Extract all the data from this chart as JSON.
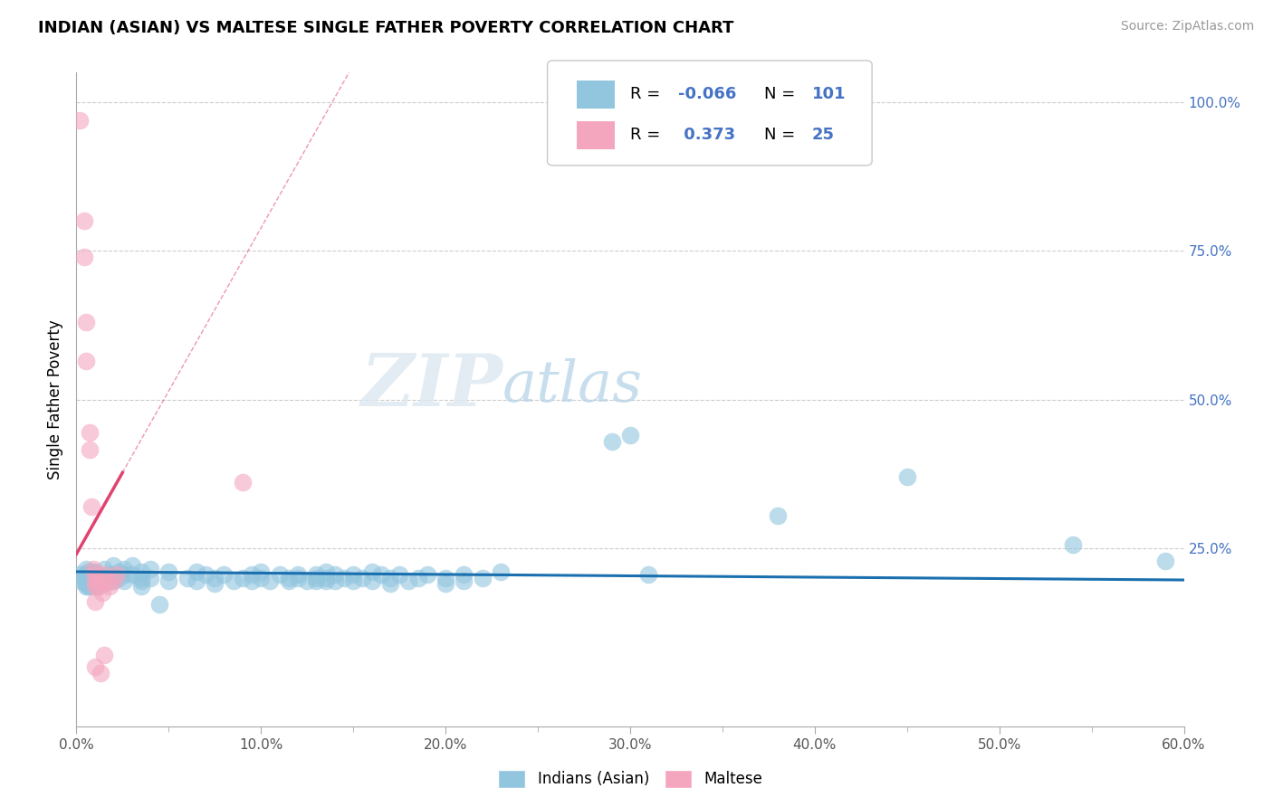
{
  "title": "INDIAN (ASIAN) VS MALTESE SINGLE FATHER POVERTY CORRELATION CHART",
  "source": "Source: ZipAtlas.com",
  "ylabel": "Single Father Poverty",
  "xlim": [
    0.0,
    0.6
  ],
  "ylim": [
    -0.05,
    1.05
  ],
  "xtick_labels": [
    "0.0%",
    "",
    "",
    "",
    "",
    "",
    "",
    "",
    "",
    "",
    "",
    "10.0%",
    "",
    "",
    "",
    "",
    "",
    "",
    "",
    "",
    "",
    "",
    "20.0%",
    "",
    "",
    "",
    "",
    "",
    "",
    "",
    "",
    "",
    "",
    "30.0%",
    "",
    "",
    "",
    "",
    "",
    "",
    "",
    "",
    "",
    "",
    "40.0%",
    "",
    "",
    "",
    "",
    "",
    "",
    "",
    "",
    "",
    "",
    "50.0%",
    "",
    "",
    "",
    "",
    "",
    "",
    "",
    "",
    "",
    "",
    "60.0%"
  ],
  "xtick_vals": [
    0.0,
    0.05,
    0.1,
    0.15,
    0.2,
    0.25,
    0.3,
    0.35,
    0.4,
    0.45,
    0.5,
    0.55,
    0.6
  ],
  "xtick_major_labels": [
    "0.0%",
    "10.0%",
    "20.0%",
    "30.0%",
    "40.0%",
    "50.0%",
    "60.0%"
  ],
  "xtick_major_vals": [
    0.0,
    0.1,
    0.2,
    0.3,
    0.4,
    0.5,
    0.6
  ],
  "ytick_labels": [
    "100.0%",
    "75.0%",
    "50.0%",
    "25.0%"
  ],
  "ytick_vals": [
    1.0,
    0.75,
    0.5,
    0.25
  ],
  "watermark_zip": "ZIP",
  "watermark_atlas": "atlas",
  "blue_color": "#92c5de",
  "pink_color": "#f4a6be",
  "blue_line_color": "#1a6faf",
  "pink_line_color": "#e0436e",
  "blue_scatter": [
    [
      0.002,
      0.205
    ],
    [
      0.003,
      0.195
    ],
    [
      0.004,
      0.2
    ],
    [
      0.005,
      0.215
    ],
    [
      0.005,
      0.205
    ],
    [
      0.005,
      0.195
    ],
    [
      0.005,
      0.19
    ],
    [
      0.005,
      0.185
    ],
    [
      0.006,
      0.21
    ],
    [
      0.006,
      0.2
    ],
    [
      0.006,
      0.195
    ],
    [
      0.006,
      0.185
    ],
    [
      0.007,
      0.205
    ],
    [
      0.007,
      0.195
    ],
    [
      0.007,
      0.185
    ],
    [
      0.008,
      0.21
    ],
    [
      0.008,
      0.2
    ],
    [
      0.008,
      0.195
    ],
    [
      0.009,
      0.205
    ],
    [
      0.009,
      0.195
    ],
    [
      0.01,
      0.21
    ],
    [
      0.01,
      0.2
    ],
    [
      0.01,
      0.195
    ],
    [
      0.01,
      0.185
    ],
    [
      0.012,
      0.205
    ],
    [
      0.012,
      0.195
    ],
    [
      0.012,
      0.185
    ],
    [
      0.015,
      0.215
    ],
    [
      0.015,
      0.2
    ],
    [
      0.015,
      0.19
    ],
    [
      0.018,
      0.205
    ],
    [
      0.018,
      0.195
    ],
    [
      0.02,
      0.22
    ],
    [
      0.02,
      0.205
    ],
    [
      0.02,
      0.195
    ],
    [
      0.023,
      0.21
    ],
    [
      0.023,
      0.2
    ],
    [
      0.026,
      0.215
    ],
    [
      0.026,
      0.205
    ],
    [
      0.026,
      0.195
    ],
    [
      0.03,
      0.22
    ],
    [
      0.03,
      0.205
    ],
    [
      0.035,
      0.21
    ],
    [
      0.035,
      0.2
    ],
    [
      0.035,
      0.195
    ],
    [
      0.035,
      0.185
    ],
    [
      0.04,
      0.215
    ],
    [
      0.04,
      0.2
    ],
    [
      0.045,
      0.155
    ],
    [
      0.05,
      0.21
    ],
    [
      0.05,
      0.195
    ],
    [
      0.06,
      0.2
    ],
    [
      0.065,
      0.21
    ],
    [
      0.065,
      0.195
    ],
    [
      0.07,
      0.205
    ],
    [
      0.075,
      0.2
    ],
    [
      0.075,
      0.19
    ],
    [
      0.08,
      0.205
    ],
    [
      0.085,
      0.195
    ],
    [
      0.09,
      0.2
    ],
    [
      0.095,
      0.205
    ],
    [
      0.095,
      0.195
    ],
    [
      0.1,
      0.21
    ],
    [
      0.1,
      0.2
    ],
    [
      0.105,
      0.195
    ],
    [
      0.11,
      0.205
    ],
    [
      0.115,
      0.2
    ],
    [
      0.115,
      0.195
    ],
    [
      0.12,
      0.205
    ],
    [
      0.12,
      0.2
    ],
    [
      0.125,
      0.195
    ],
    [
      0.13,
      0.205
    ],
    [
      0.13,
      0.2
    ],
    [
      0.13,
      0.195
    ],
    [
      0.135,
      0.21
    ],
    [
      0.135,
      0.2
    ],
    [
      0.135,
      0.195
    ],
    [
      0.14,
      0.205
    ],
    [
      0.14,
      0.195
    ],
    [
      0.145,
      0.2
    ],
    [
      0.15,
      0.205
    ],
    [
      0.15,
      0.195
    ],
    [
      0.155,
      0.2
    ],
    [
      0.16,
      0.21
    ],
    [
      0.16,
      0.195
    ],
    [
      0.165,
      0.205
    ],
    [
      0.17,
      0.2
    ],
    [
      0.17,
      0.19
    ],
    [
      0.175,
      0.205
    ],
    [
      0.18,
      0.195
    ],
    [
      0.185,
      0.2
    ],
    [
      0.19,
      0.205
    ],
    [
      0.2,
      0.2
    ],
    [
      0.2,
      0.19
    ],
    [
      0.21,
      0.205
    ],
    [
      0.21,
      0.195
    ],
    [
      0.22,
      0.2
    ],
    [
      0.23,
      0.21
    ],
    [
      0.29,
      0.43
    ],
    [
      0.3,
      0.44
    ],
    [
      0.31,
      0.205
    ],
    [
      0.38,
      0.305
    ],
    [
      0.45,
      0.37
    ],
    [
      0.54,
      0.255
    ],
    [
      0.59,
      0.228
    ]
  ],
  "pink_scatter": [
    [
      0.002,
      0.97
    ],
    [
      0.004,
      0.8
    ],
    [
      0.004,
      0.74
    ],
    [
      0.005,
      0.63
    ],
    [
      0.005,
      0.565
    ],
    [
      0.007,
      0.445
    ],
    [
      0.007,
      0.415
    ],
    [
      0.008,
      0.32
    ],
    [
      0.009,
      0.215
    ],
    [
      0.01,
      0.205
    ],
    [
      0.01,
      0.195
    ],
    [
      0.01,
      0.185
    ],
    [
      0.01,
      0.16
    ],
    [
      0.01,
      0.05
    ],
    [
      0.012,
      0.195
    ],
    [
      0.012,
      0.185
    ],
    [
      0.013,
      0.04
    ],
    [
      0.014,
      0.175
    ],
    [
      0.015,
      0.205
    ],
    [
      0.015,
      0.07
    ],
    [
      0.016,
      0.195
    ],
    [
      0.018,
      0.185
    ],
    [
      0.02,
      0.195
    ],
    [
      0.022,
      0.205
    ],
    [
      0.09,
      0.36
    ]
  ],
  "legend_box_color": "#dddddd",
  "title_fontsize": 13,
  "source_fontsize": 10,
  "tick_fontsize": 11
}
